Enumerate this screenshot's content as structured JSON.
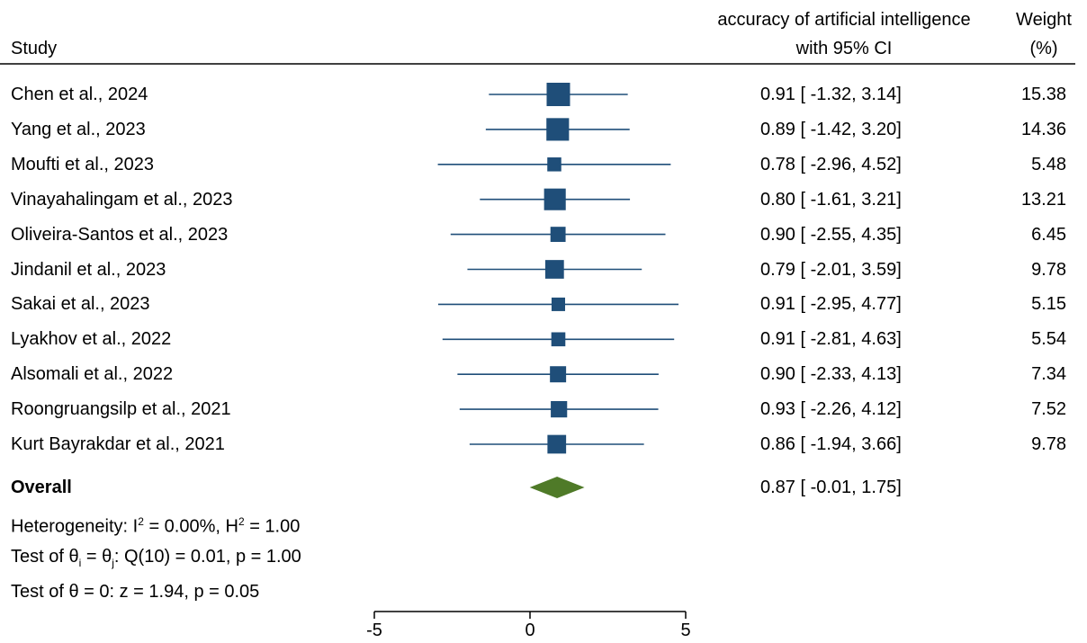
{
  "header": {
    "study_label": "Study",
    "effect_label_line1": "accuracy of artificial intelligence",
    "effect_label_line2": "with 95% CI",
    "weight_label_line1": "Weight",
    "weight_label_line2": "(%)"
  },
  "overall": {
    "label": "Overall",
    "ci_text": "0.87 [ -0.01,  1.75]"
  },
  "stats": {
    "heterogeneity": {
      "prefix": "Heterogeneity: I",
      "sup1": "2",
      "mid": " = 0.00%, H",
      "sup2": "2",
      "suffix": " = 1.00"
    },
    "theta_test": {
      "prefix": "Test of θ",
      "sub1": "i",
      "mid": " = θ",
      "sub2": "j",
      "suffix": ": Q(10) = 0.01, p = 1.00"
    },
    "zero_test": "Test of θ = 0: z = 1.94, p = 0.05"
  },
  "colors": {
    "study_marker": "#1f4e79",
    "overall_diamond": "#4f7a28",
    "axis": "#000000"
  },
  "chart_data": {
    "type": "forest",
    "xlim": [
      -5,
      5
    ],
    "x_ticks": [
      -5,
      0,
      5
    ],
    "x_tick_labels": [
      "-5",
      "0",
      "5"
    ],
    "studies": [
      {
        "name": "Chen et al., 2024",
        "est": 0.91,
        "lo": -1.32,
        "hi": 3.14,
        "ci_text": "0.91 [ -1.32,  3.14]",
        "weight": "15.38",
        "w": 15.38
      },
      {
        "name": "Yang et al., 2023",
        "est": 0.89,
        "lo": -1.42,
        "hi": 3.2,
        "ci_text": "0.89 [ -1.42,  3.20]",
        "weight": "14.36",
        "w": 14.36
      },
      {
        "name": "Moufti et al., 2023",
        "est": 0.78,
        "lo": -2.96,
        "hi": 4.52,
        "ci_text": "0.78 [ -2.96,  4.52]",
        "weight": "5.48",
        "w": 5.48
      },
      {
        "name": "Vinayahalingam et al., 2023",
        "est": 0.8,
        "lo": -1.61,
        "hi": 3.21,
        "ci_text": "0.80 [ -1.61,  3.21]",
        "weight": "13.21",
        "w": 13.21
      },
      {
        "name": "Oliveira-Santos et al., 2023",
        "est": 0.9,
        "lo": -2.55,
        "hi": 4.35,
        "ci_text": "0.90 [ -2.55,  4.35]",
        "weight": "6.45",
        "w": 6.45
      },
      {
        "name": "Jindanil et al., 2023",
        "est": 0.79,
        "lo": -2.01,
        "hi": 3.59,
        "ci_text": "0.79 [ -2.01,  3.59]",
        "weight": "9.78",
        "w": 9.78
      },
      {
        "name": "Sakai et al., 2023",
        "est": 0.91,
        "lo": -2.95,
        "hi": 4.77,
        "ci_text": "0.91 [ -2.95,  4.77]",
        "weight": "5.15",
        "w": 5.15
      },
      {
        "name": "Lyakhov et al., 2022",
        "est": 0.91,
        "lo": -2.81,
        "hi": 4.63,
        "ci_text": "0.91 [ -2.81,  4.63]",
        "weight": "5.54",
        "w": 5.54
      },
      {
        "name": "Alsomali et al., 2022",
        "est": 0.9,
        "lo": -2.33,
        "hi": 4.13,
        "ci_text": "0.90 [ -2.33,  4.13]",
        "weight": "7.34",
        "w": 7.34
      },
      {
        "name": "Roongruangsilp et al., 2021",
        "est": 0.93,
        "lo": -2.26,
        "hi": 4.12,
        "ci_text": "0.93 [ -2.26,  4.12]",
        "weight": "7.52",
        "w": 7.52
      },
      {
        "name": "Kurt Bayrakdar et al., 2021",
        "est": 0.86,
        "lo": -1.94,
        "hi": 3.66,
        "ci_text": "0.86 [ -1.94,  3.66]",
        "weight": "9.78",
        "w": 9.78
      }
    ],
    "overall": {
      "est": 0.87,
      "lo": -0.01,
      "hi": 1.75
    }
  }
}
